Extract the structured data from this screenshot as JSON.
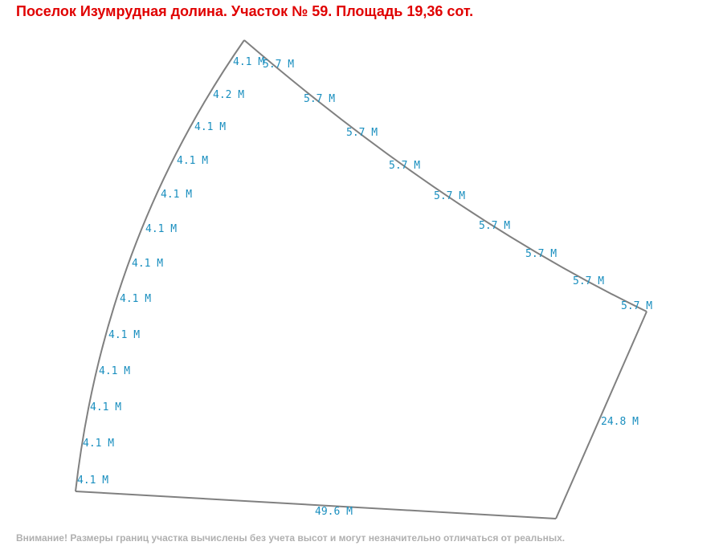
{
  "title": "Поселок Изумрудная долина. Участок № 59. Площадь 19,36 сот.",
  "note": "Внимание! Размеры границ участка вычислены без учета высот и могут незначительно отличаться от реальных.",
  "colors": {
    "title": "#e00000",
    "boundary": "#808080",
    "dimension_labels": "#1a8fbf",
    "note": "#b0b0b0"
  },
  "dimensions": {
    "arc_left": [
      "4.1 М",
      "4.2 М",
      "4.1 М",
      "4.1 М",
      "4.1 М",
      "4.1 М",
      "4.1 М",
      "4.1 М",
      "4.1 М",
      "4.1 М",
      "4.1 М",
      "4.1 М",
      "4.1 М"
    ],
    "arc_top": [
      "5.7 М",
      "5.7 М",
      "5.7 М",
      "5.7 М",
      "5.7 М",
      "5.7 М",
      "5.7 М",
      "5.7 М",
      "5.7 М"
    ],
    "right": "24.8 М",
    "bottom": "49.6 М"
  }
}
